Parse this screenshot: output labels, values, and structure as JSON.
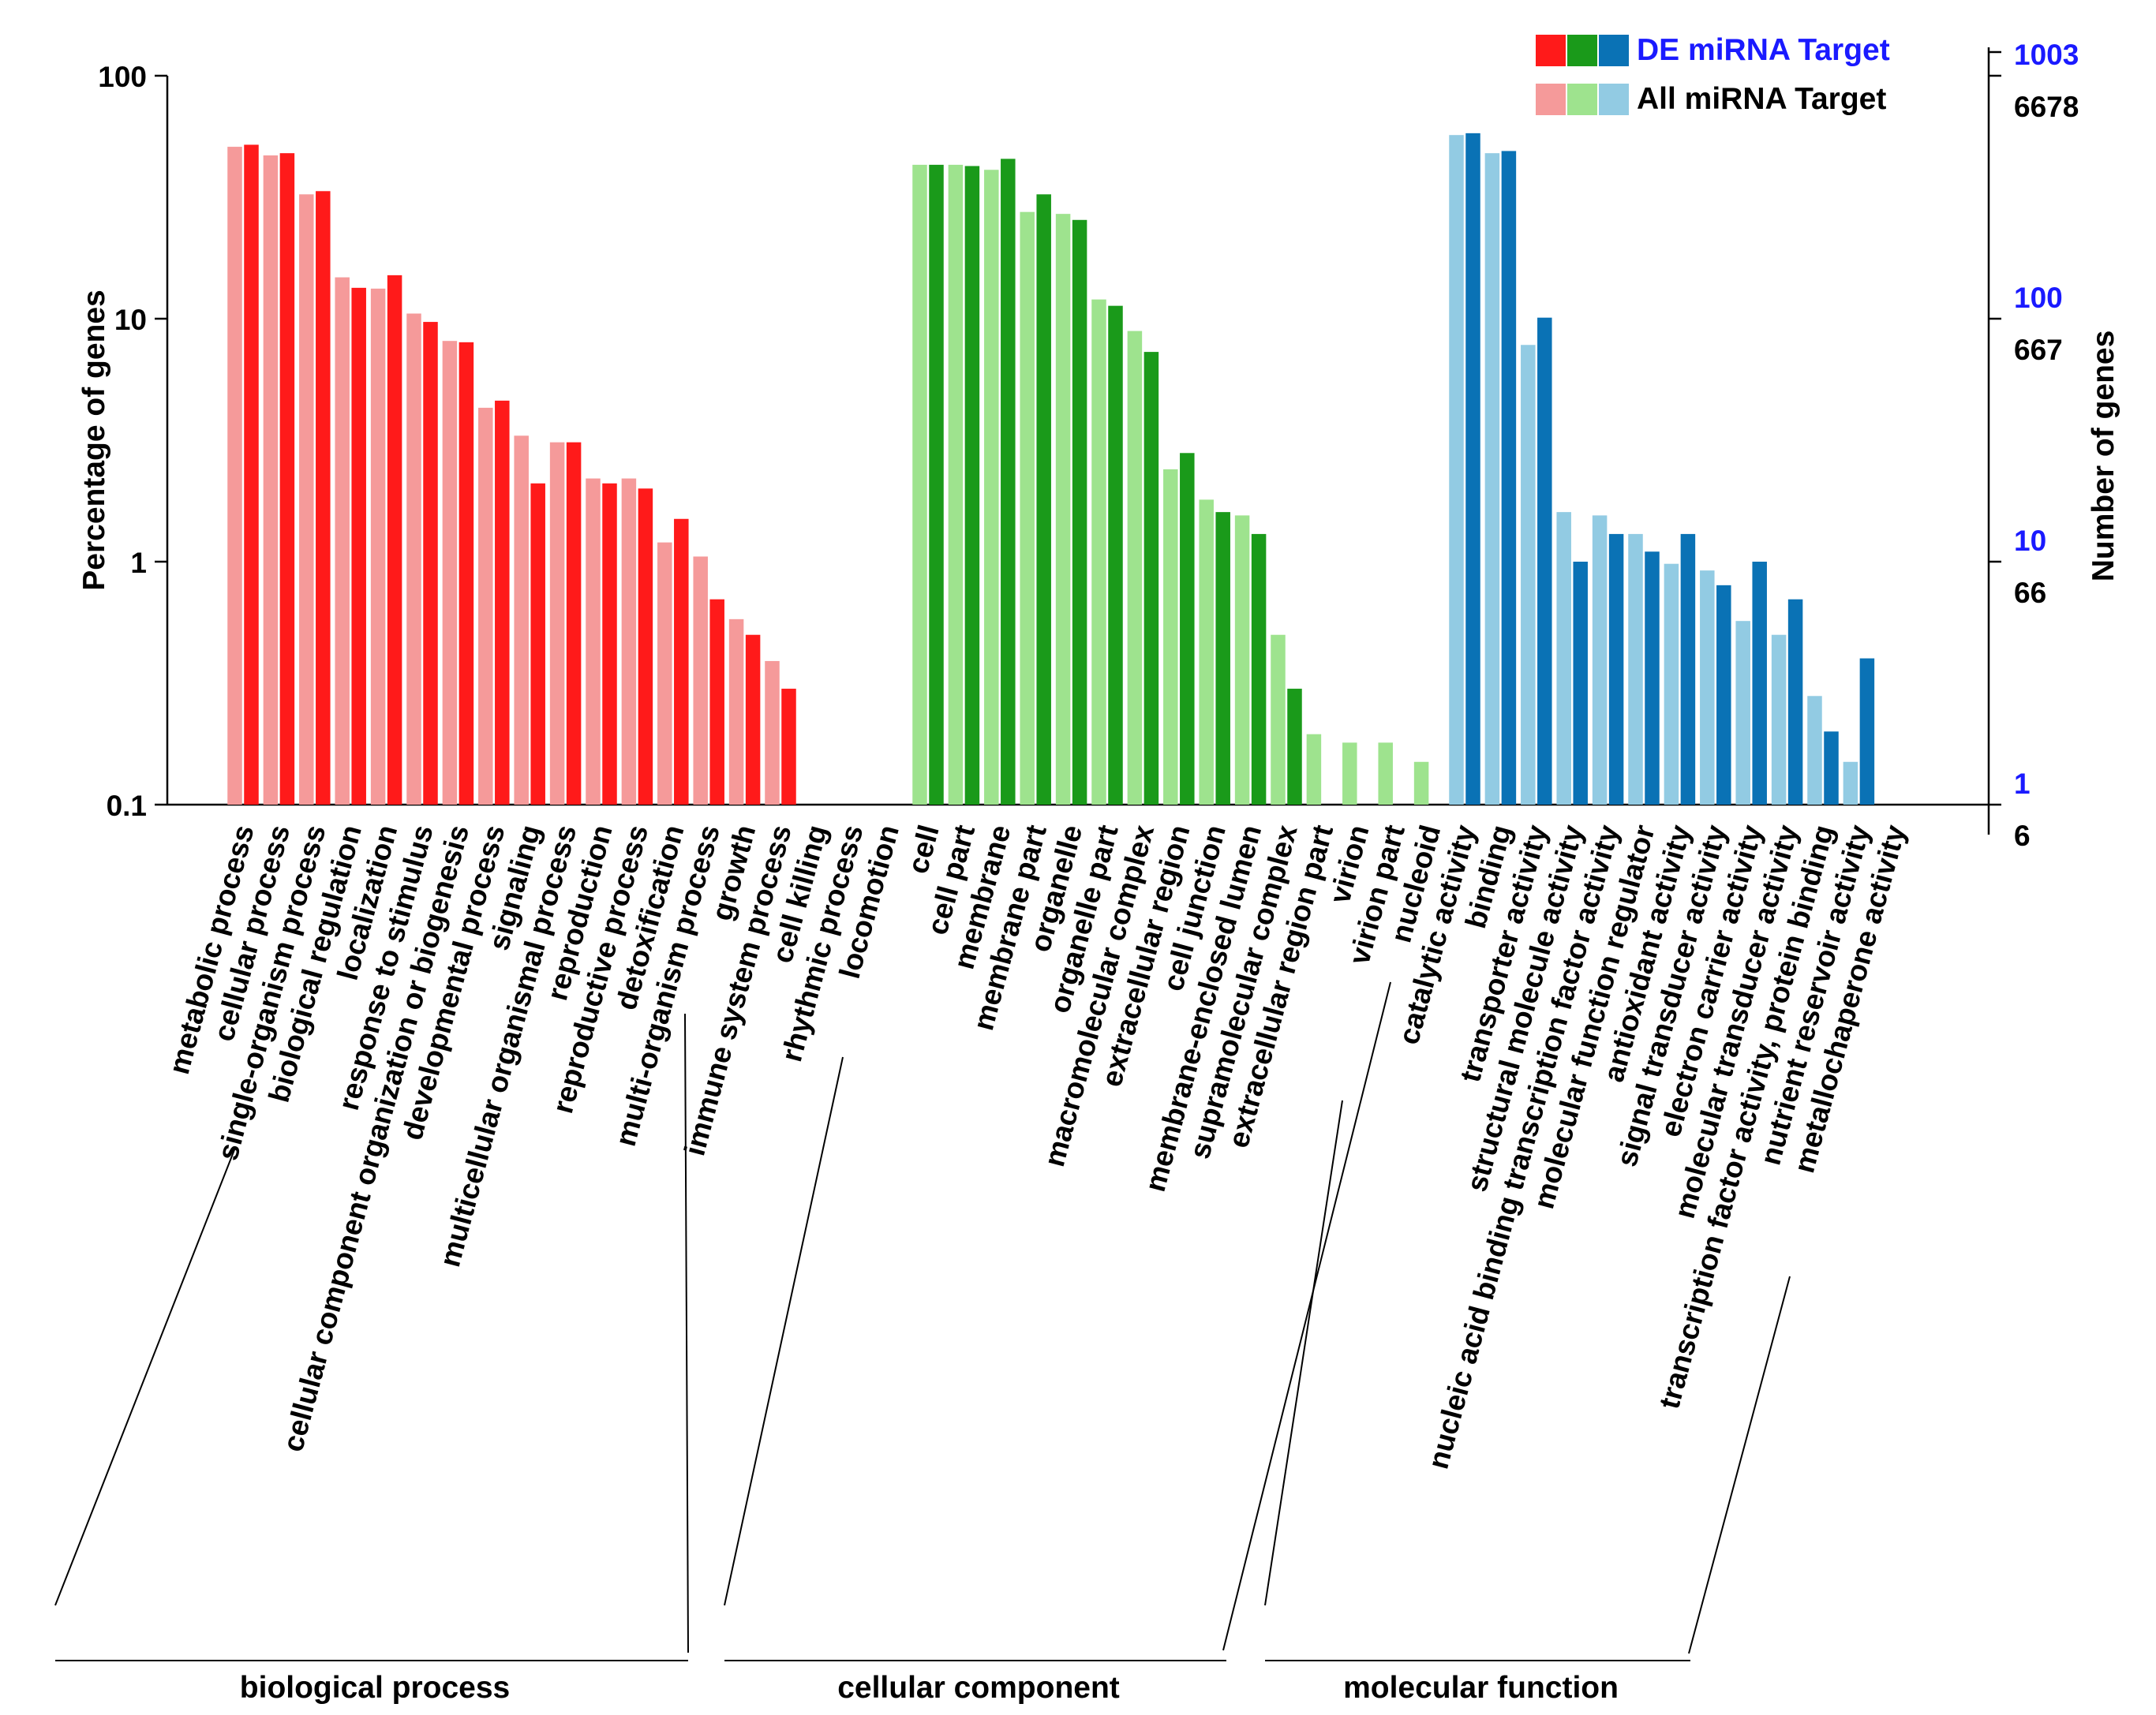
{
  "chart_data": {
    "type": "bar",
    "scale": "log",
    "ylabel": "Percentage of genes",
    "y2label": "Number of genes",
    "ylim": [
      0.1,
      100
    ],
    "yticks": [
      {
        "value": 100,
        "label": "100"
      },
      {
        "value": 10,
        "label": "10"
      },
      {
        "value": 1,
        "label": "1"
      },
      {
        "value": 0.1,
        "label": "0.1"
      }
    ],
    "right_ticks": [
      {
        "value": 100,
        "de": "1003",
        "all": "6678"
      },
      {
        "value": 10,
        "de": "100",
        "all": "667"
      },
      {
        "value": 1,
        "de": "10",
        "all": "66"
      },
      {
        "value": 0.1,
        "de": "1",
        "all": "6"
      }
    ],
    "legend": {
      "position": "top-right",
      "de_label": "DE miRNA Target",
      "all_label": "All miRNA Target"
    },
    "groups": [
      {
        "name": "biological process",
        "dark": "#ff1a1a",
        "light": "#f59a9a",
        "categories": [
          {
            "label": "metabolic process",
            "all": 51,
            "de": 52
          },
          {
            "label": "cellular process",
            "all": 47,
            "de": 48
          },
          {
            "label": "single-organism process",
            "all": 32.5,
            "de": 33.5
          },
          {
            "label": "biological regulation",
            "all": 14.8,
            "de": 13.4
          },
          {
            "label": "localization",
            "all": 13.3,
            "de": 15.1
          },
          {
            "label": "response to stimulus",
            "all": 10.5,
            "de": 9.7
          },
          {
            "label": "cellular component organization or biogenesis",
            "all": 8.1,
            "de": 8.0
          },
          {
            "label": "developmental process",
            "all": 4.3,
            "de": 4.6
          },
          {
            "label": "signaling",
            "all": 3.3,
            "de": 2.1
          },
          {
            "label": "multicellular organismal process",
            "all": 3.1,
            "de": 3.1
          },
          {
            "label": "reproduction",
            "all": 2.2,
            "de": 2.1
          },
          {
            "label": "reproductive process",
            "all": 2.2,
            "de": 2.0
          },
          {
            "label": "detoxification",
            "all": 1.2,
            "de": 1.5
          },
          {
            "label": "multi-organism process",
            "all": 1.05,
            "de": 0.7
          },
          {
            "label": "growth",
            "all": 0.58,
            "de": 0.5
          },
          {
            "label": "immune system process",
            "all": 0.39,
            "de": 0.3
          },
          {
            "label": "cell killing",
            "all": null,
            "de": null
          },
          {
            "label": "rhythmic process",
            "all": null,
            "de": null
          },
          {
            "label": "locomotion",
            "all": null,
            "de": null
          }
        ]
      },
      {
        "name": "cellular component",
        "dark": "#1a9a1a",
        "light": "#9ee38e",
        "categories": [
          {
            "label": "cell",
            "all": 43,
            "de": 43
          },
          {
            "label": "cell part",
            "all": 43,
            "de": 42.5
          },
          {
            "label": "membrane",
            "all": 41,
            "de": 45.5
          },
          {
            "label": "membrane part",
            "all": 27.5,
            "de": 32.5
          },
          {
            "label": "organelle",
            "all": 27,
            "de": 25.5
          },
          {
            "label": "organelle part",
            "all": 12,
            "de": 11.3
          },
          {
            "label": "macromolecular complex",
            "all": 8.9,
            "de": 7.3
          },
          {
            "label": "extracellular region",
            "all": 2.4,
            "de": 2.8
          },
          {
            "label": "cell junction",
            "all": 1.8,
            "de": 1.6
          },
          {
            "label": "membrane-enclosed lumen",
            "all": 1.55,
            "de": 1.3
          },
          {
            "label": "supramolecular complex",
            "all": 0.5,
            "de": 0.3
          },
          {
            "label": "extracellular region part",
            "all": 0.195,
            "de": null
          },
          {
            "label": "virion",
            "all": 0.18,
            "de": null
          },
          {
            "label": "virion part",
            "all": 0.18,
            "de": null
          },
          {
            "label": "nucleoid",
            "all": 0.15,
            "de": null
          }
        ]
      },
      {
        "name": "molecular function",
        "dark": "#0a72b5",
        "light": "#92cbe3",
        "categories": [
          {
            "label": "catalytic activity",
            "all": 57,
            "de": 58
          },
          {
            "label": "binding",
            "all": 48,
            "de": 49
          },
          {
            "label": "transporter activity",
            "all": 7.8,
            "de": 10.1
          },
          {
            "label": "structural molecule activity",
            "all": 1.6,
            "de": 1.0
          },
          {
            "label": "nucleic acid binding transcription factor activity",
            "all": 1.55,
            "de": 1.3
          },
          {
            "label": "molecular function regulator",
            "all": 1.3,
            "de": 1.1
          },
          {
            "label": "antioxidant activity",
            "all": 0.98,
            "de": 1.3
          },
          {
            "label": "signal transducer activity",
            "all": 0.92,
            "de": 0.8
          },
          {
            "label": "electron carrier activity",
            "all": 0.57,
            "de": 1.0
          },
          {
            "label": "molecular transducer activity",
            "all": 0.5,
            "de": 0.7
          },
          {
            "label": "transcription factor activity, protein binding",
            "all": 0.28,
            "de": 0.2
          },
          {
            "label": "nutrient reservoir activity",
            "all": 0.15,
            "de": 0.4
          },
          {
            "label": "metallochaperone activity",
            "all": null,
            "de": null
          }
        ]
      }
    ]
  }
}
